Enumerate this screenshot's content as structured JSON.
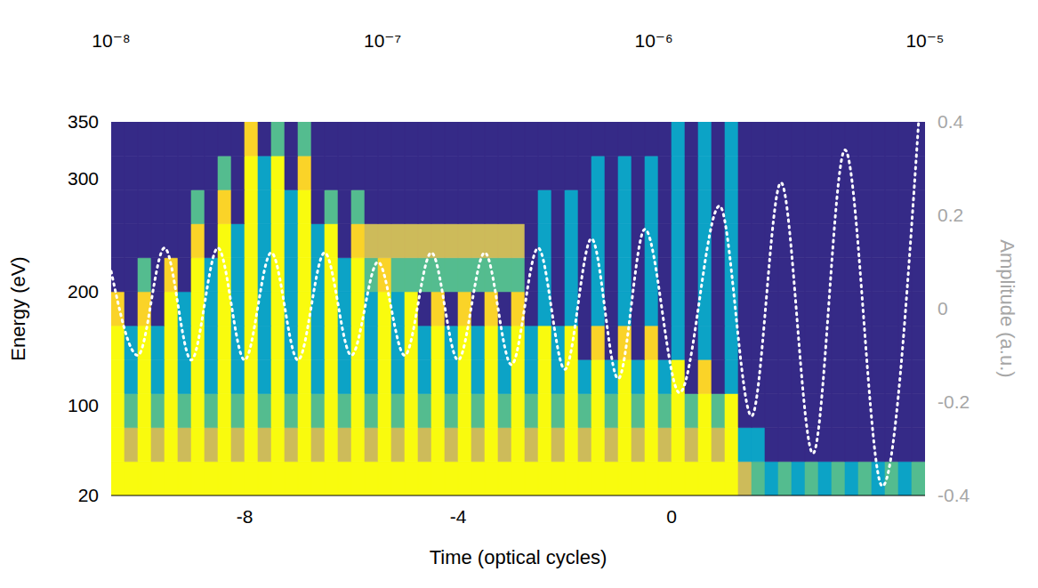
{
  "chart_data": {
    "type": "heatmap",
    "x_label": "Time (optical cycles)",
    "y_label": "Energy (eV)",
    "y2_label": "Amplitude (a.u.)",
    "xlim": [
      -10.5,
      4.75
    ],
    "xticks": [
      -8,
      -4,
      0
    ],
    "ylim": [
      20,
      350
    ],
    "yticks": [
      20,
      100,
      200,
      300,
      350
    ],
    "y2lim": [
      -0.4,
      0.4
    ],
    "y2ticks": [
      -0.4,
      -0.2,
      0,
      0.2,
      0.4
    ],
    "colorbar_range": [
      1e-08,
      1e-05
    ],
    "colorbar_ticks": [
      {
        "value": 1e-08,
        "label": "10⁻⁸"
      },
      {
        "value": 1e-07,
        "label": "10⁻⁷"
      },
      {
        "value": 1e-06,
        "label": "10⁻⁶"
      },
      {
        "value": 1e-05,
        "label": "10⁻⁵"
      }
    ],
    "x_edges": [
      -10.5,
      -10.25,
      -10,
      -9.75,
      -9.5,
      -9.25,
      -9,
      -8.75,
      -8.5,
      -8.25,
      -8,
      -7.75,
      -7.5,
      -7.25,
      -7,
      -6.75,
      -6.5,
      -6.25,
      -6,
      -5.75,
      -5.5,
      -5.25,
      -5,
      -4.75,
      -4.5,
      -4.25,
      -4,
      -3.75,
      -3.5,
      -3.25,
      -3,
      -2.75,
      -2.5,
      -2.25,
      -2,
      -1.75,
      -1.5,
      -1.25,
      -1,
      -0.75,
      -0.5,
      -0.25,
      0,
      0.25,
      0.5,
      0.75,
      1,
      1.25,
      1.5,
      1.75,
      2,
      2.25,
      2.5,
      2.75,
      3,
      3.25,
      3.5,
      3.75,
      4,
      4.25,
      4.5,
      4.75
    ],
    "y_edges": [
      20,
      50,
      80,
      110,
      140,
      170,
      200,
      230,
      260,
      290,
      320,
      350
    ],
    "cells": [
      [
        1e-05,
        1e-05,
        1e-05,
        1e-05,
        1e-05,
        1e-05,
        1e-05,
        1e-05,
        1e-05,
        1e-05,
        1e-05,
        1e-05,
        1e-05,
        1e-05,
        1e-05,
        1e-05,
        1e-05,
        1e-05,
        1e-05,
        1e-05,
        1e-05,
        1e-05,
        1e-05,
        1e-05,
        1e-05,
        1e-05,
        1e-05,
        1e-05,
        1e-05,
        1e-05,
        1e-05,
        1e-05,
        1e-05,
        1e-05,
        1e-05,
        1e-05,
        1e-05,
        1e-05,
        1e-05,
        1e-05,
        1e-05,
        1e-05,
        1e-05,
        1e-05,
        1e-05,
        1e-05,
        1e-05,
        1e-06,
        3e-07,
        1e-07,
        3e-07,
        1e-07,
        3e-07,
        1e-07,
        3e-07,
        1e-07,
        3e-07,
        1e-07,
        3e-07,
        1e-07,
        3e-07
      ],
      [
        1e-05,
        1e-06,
        1e-05,
        1e-06,
        1e-05,
        1e-06,
        1e-05,
        1e-06,
        1e-05,
        1e-06,
        1e-05,
        1e-06,
        1e-05,
        1e-06,
        1e-05,
        1e-06,
        1e-05,
        1e-06,
        1e-05,
        1e-06,
        1e-05,
        1e-06,
        1e-05,
        1e-06,
        1e-05,
        1e-06,
        1e-05,
        1e-06,
        1e-05,
        1e-06,
        1e-05,
        1e-06,
        1e-05,
        1e-06,
        1e-05,
        1e-06,
        1e-05,
        1e-06,
        1e-05,
        1e-06,
        1e-05,
        1e-06,
        1e-05,
        1e-06,
        1e-05,
        1e-06,
        1e-05,
        1e-07,
        1e-07,
        1e-08,
        1e-08,
        1e-08,
        1e-08,
        1e-08,
        1e-08,
        1e-08,
        1e-08,
        1e-08,
        1e-08,
        1e-08,
        1e-08
      ],
      [
        1e-05,
        3e-07,
        1e-05,
        3e-07,
        1e-05,
        3e-07,
        1e-05,
        3e-07,
        1e-05,
        3e-07,
        1e-05,
        3e-07,
        1e-05,
        3e-07,
        1e-05,
        3e-07,
        1e-05,
        3e-07,
        1e-05,
        3e-07,
        1e-05,
        3e-07,
        1e-05,
        3e-07,
        1e-05,
        3e-07,
        1e-05,
        3e-07,
        1e-05,
        3e-07,
        1e-05,
        3e-07,
        1e-05,
        3e-07,
        1e-05,
        3e-07,
        1e-05,
        3e-07,
        1e-05,
        3e-07,
        1e-05,
        3e-07,
        1e-05,
        3e-07,
        1e-05,
        3e-07,
        1e-05,
        1e-08,
        1e-08,
        1e-08,
        1e-08,
        1e-08,
        1e-08,
        1e-08,
        1e-08,
        1e-08,
        1e-08,
        1e-08,
        1e-08,
        1e-08,
        1e-08
      ],
      [
        1e-05,
        1e-07,
        1e-05,
        1e-07,
        1e-05,
        1e-07,
        1e-05,
        1e-07,
        1e-05,
        1e-07,
        1e-05,
        1e-07,
        1e-05,
        1e-07,
        1e-05,
        1e-07,
        1e-05,
        1e-07,
        1e-05,
        1e-07,
        1e-05,
        1e-07,
        1e-05,
        1e-07,
        1e-05,
        1e-07,
        1e-05,
        1e-07,
        1e-05,
        1e-07,
        1e-05,
        1e-07,
        1e-05,
        1e-07,
        1e-05,
        1e-07,
        1e-05,
        1e-07,
        1e-05,
        1e-07,
        1e-05,
        1e-07,
        1e-05,
        1e-08,
        3e-06,
        1e-08,
        1e-07,
        1e-08,
        1e-08,
        1e-08,
        1e-08,
        1e-08,
        1e-08,
        1e-08,
        1e-08,
        1e-08,
        1e-08,
        1e-08,
        1e-08,
        1e-08,
        1e-08
      ],
      [
        1e-05,
        1e-07,
        1e-05,
        1e-07,
        1e-05,
        1e-07,
        1e-05,
        1e-07,
        1e-05,
        1e-07,
        1e-05,
        1e-07,
        1e-05,
        1e-07,
        1e-05,
        1e-07,
        1e-05,
        1e-07,
        1e-05,
        1e-07,
        1e-05,
        1e-07,
        1e-05,
        1e-07,
        1e-05,
        1e-07,
        1e-05,
        1e-07,
        1e-05,
        1e-07,
        1e-05,
        1e-07,
        1e-05,
        1e-07,
        1e-05,
        1e-08,
        3e-06,
        1e-08,
        3e-06,
        1e-08,
        3e-06,
        1e-08,
        1e-07,
        1e-08,
        1e-07,
        1e-08,
        1e-07,
        1e-08,
        1e-08,
        1e-08,
        1e-08,
        1e-08,
        1e-08,
        1e-08,
        1e-08,
        1e-08,
        1e-08,
        1e-08,
        1e-08,
        1e-08,
        1e-08
      ],
      [
        3e-06,
        1e-08,
        3e-06,
        1e-08,
        1e-05,
        1e-07,
        1e-05,
        1e-07,
        1e-05,
        1e-07,
        1e-05,
        1e-07,
        1e-05,
        1e-07,
        1e-05,
        1e-07,
        1e-05,
        1e-07,
        1e-05,
        1e-07,
        1e-05,
        1e-07,
        1e-05,
        1e-08,
        3e-06,
        1e-08,
        3e-06,
        1e-08,
        3e-06,
        1e-08,
        3e-06,
        1e-08,
        1e-07,
        1e-08,
        1e-07,
        1e-08,
        1e-07,
        1e-08,
        1e-07,
        1e-08,
        1e-07,
        1e-08,
        1e-07,
        1e-08,
        1e-07,
        1e-08,
        1e-07,
        1e-08,
        1e-08,
        1e-08,
        1e-08,
        1e-08,
        1e-08,
        1e-08,
        1e-08,
        1e-08,
        1e-08,
        1e-08,
        1e-08,
        1e-08,
        1e-08
      ],
      [
        1e-08,
        1e-08,
        3e-07,
        1e-08,
        3e-06,
        1e-08,
        1e-05,
        1e-07,
        1e-05,
        1e-07,
        1e-05,
        1e-07,
        1e-05,
        1e-07,
        1e-05,
        1e-07,
        1e-05,
        1e-07,
        1e-05,
        3e-07,
        3e-06,
        3e-07,
        3e-07,
        3e-07,
        3e-07,
        3e-07,
        3e-07,
        3e-07,
        3e-07,
        3e-07,
        3e-07,
        1e-08,
        1e-07,
        1e-08,
        1e-07,
        1e-08,
        1e-07,
        1e-08,
        1e-07,
        1e-08,
        1e-07,
        1e-08,
        1e-07,
        1e-08,
        1e-07,
        1e-08,
        1e-07,
        1e-08,
        1e-08,
        1e-08,
        1e-08,
        1e-08,
        1e-08,
        1e-08,
        1e-08,
        1e-08,
        1e-08,
        1e-08,
        1e-08,
        1e-08,
        1e-08
      ],
      [
        1e-08,
        1e-08,
        1e-08,
        1e-08,
        1e-08,
        1e-08,
        3e-06,
        1e-08,
        1e-05,
        1e-07,
        1e-05,
        1e-07,
        1e-05,
        1e-07,
        1e-05,
        1e-07,
        1e-05,
        1e-08,
        3e-06,
        1e-06,
        1e-06,
        1e-06,
        1e-06,
        1e-06,
        1e-06,
        1e-06,
        1e-06,
        1e-06,
        1e-06,
        1e-06,
        1e-06,
        1e-08,
        1e-07,
        1e-08,
        1e-07,
        1e-08,
        1e-07,
        1e-08,
        1e-07,
        1e-08,
        1e-07,
        1e-08,
        1e-07,
        1e-08,
        1e-07,
        1e-08,
        1e-07,
        1e-08,
        1e-08,
        1e-08,
        1e-08,
        1e-08,
        1e-08,
        1e-08,
        1e-08,
        1e-08,
        1e-08,
        1e-08,
        1e-08,
        1e-08,
        1e-08
      ],
      [
        1e-08,
        1e-08,
        1e-08,
        1e-08,
        1e-08,
        1e-08,
        3e-07,
        1e-08,
        3e-06,
        1e-08,
        1e-05,
        1e-07,
        1e-05,
        1e-07,
        1e-05,
        1e-08,
        3e-07,
        1e-08,
        3e-07,
        1e-08,
        1e-08,
        1e-08,
        1e-08,
        1e-08,
        1e-08,
        1e-08,
        1e-08,
        1e-08,
        1e-08,
        1e-08,
        1e-08,
        1e-08,
        1e-07,
        1e-08,
        1e-07,
        1e-08,
        1e-07,
        1e-08,
        1e-07,
        1e-08,
        1e-07,
        1e-08,
        1e-07,
        1e-08,
        1e-07,
        1e-08,
        1e-07,
        1e-08,
        1e-08,
        1e-08,
        1e-08,
        1e-08,
        1e-08,
        1e-08,
        1e-08,
        1e-08,
        1e-08,
        1e-08,
        1e-08,
        1e-08,
        1e-08
      ],
      [
        1e-08,
        1e-08,
        1e-08,
        1e-08,
        1e-08,
        1e-08,
        1e-08,
        1e-08,
        3e-07,
        1e-08,
        1e-05,
        1e-07,
        1e-05,
        1e-08,
        3e-06,
        1e-08,
        1e-08,
        1e-08,
        1e-08,
        1e-08,
        1e-08,
        1e-08,
        1e-08,
        1e-08,
        1e-08,
        1e-08,
        1e-08,
        1e-08,
        1e-08,
        1e-08,
        1e-08,
        1e-08,
        1e-08,
        1e-08,
        1e-08,
        1e-08,
        1e-07,
        1e-08,
        1e-07,
        1e-08,
        1e-07,
        1e-08,
        1e-07,
        1e-08,
        1e-07,
        1e-08,
        1e-07,
        1e-08,
        1e-08,
        1e-08,
        1e-08,
        1e-08,
        1e-08,
        1e-08,
        1e-08,
        1e-08,
        1e-08,
        1e-08,
        1e-08,
        1e-08,
        1e-08
      ],
      [
        1e-08,
        1e-08,
        1e-08,
        1e-08,
        1e-08,
        1e-08,
        1e-08,
        1e-08,
        1e-08,
        1e-08,
        3e-06,
        1e-08,
        3e-07,
        1e-08,
        3e-07,
        1e-08,
        1e-08,
        1e-08,
        1e-08,
        1e-08,
        1e-08,
        1e-08,
        1e-08,
        1e-08,
        1e-08,
        1e-08,
        1e-08,
        1e-08,
        1e-08,
        1e-08,
        1e-08,
        1e-08,
        1e-08,
        1e-08,
        1e-08,
        1e-08,
        1e-08,
        1e-08,
        1e-08,
        1e-08,
        1e-08,
        1e-08,
        1e-07,
        1e-08,
        1e-07,
        1e-08,
        1e-07,
        1e-08,
        1e-08,
        1e-08,
        1e-08,
        1e-08,
        1e-08,
        1e-08,
        1e-08,
        1e-08,
        1e-08,
        1e-08,
        1e-08,
        1e-08,
        1e-08
      ]
    ],
    "series": [
      {
        "color": "#ffffff",
        "line_style": "dotted",
        "axis": "y2",
        "x": [
          -10.5,
          -10,
          -9.5,
          -9,
          -8.5,
          -8,
          -7.5,
          -7,
          -6.5,
          -6,
          -5.5,
          -5,
          -4.5,
          -4,
          -3.5,
          -3,
          -2.5,
          -2,
          -1.5,
          -1,
          -0.5,
          0.15,
          0.9,
          1.5,
          2.05,
          2.65,
          3.25,
          3.95,
          4.63
        ],
        "values": [
          0.08,
          -0.1,
          0.13,
          -0.11,
          0.13,
          -0.11,
          0.12,
          -0.11,
          0.12,
          -0.1,
          0.1,
          -0.1,
          0.12,
          -0.11,
          0.12,
          -0.12,
          0.13,
          -0.13,
          0.15,
          -0.15,
          0.17,
          -0.18,
          0.22,
          -0.23,
          0.27,
          -0.31,
          0.34,
          -0.38,
          0.4
        ]
      }
    ]
  }
}
